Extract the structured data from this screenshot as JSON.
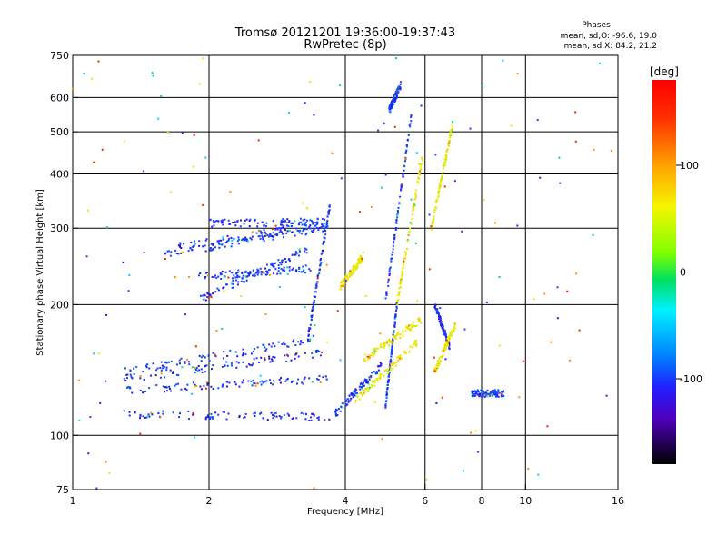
{
  "chart_data": {
    "type": "scatter",
    "title": "Tromsø 20121201 19:36:00-19:37:43",
    "subtitle": "RwPretec (8p)",
    "xlabel": "Frequency [MHz]",
    "ylabel": "Stationary phase Virtual Height [km]",
    "x_scale": "log",
    "y_scale": "log",
    "xlim": [
      1,
      16
    ],
    "ylim": [
      75,
      750
    ],
    "x_ticks": [
      1,
      2,
      4,
      6,
      8,
      10,
      16
    ],
    "x_tick_labels": [
      "1",
      "2",
      "4",
      "6",
      "8",
      "10",
      "16"
    ],
    "x_grid": [
      2,
      4,
      6,
      8,
      10
    ],
    "y_ticks": [
      75,
      100,
      200,
      300,
      400,
      500,
      600,
      750
    ],
    "y_tick_labels": [
      "75",
      "100",
      "200",
      "300",
      "400",
      "500",
      "600",
      "750"
    ],
    "y_grid": [
      100,
      200,
      300,
      400,
      500,
      600
    ],
    "grid": true,
    "legend_title": "Phases",
    "legend_lines": [
      "mean, sd,O:  -96.6, 19.0",
      "mean, sd,X:  84.2, 21.2"
    ],
    "colorbar": {
      "label": "[deg]",
      "range": [
        -180,
        180
      ],
      "ticks": [
        100,
        0,
        -100
      ],
      "tick_labels": [
        "100",
        "0",
        "-100"
      ]
    },
    "series": [
      {
        "name": "O",
        "color": "#1f3fff",
        "traces": [
          {
            "f": [
              1.3,
              3.7
            ],
            "h": [
              112,
              110
            ]
          },
          {
            "f": [
              1.3,
              3.7
            ],
            "h": [
              127,
              135
            ]
          },
          {
            "f": [
              1.3,
              3.6
            ],
            "h": [
              135,
              155
            ]
          },
          {
            "f": [
              1.3,
              3.6
            ],
            "h": [
              140,
              168
            ]
          },
          {
            "f": [
              1.6,
              3.7
            ],
            "h": [
              262,
              300
            ]
          },
          {
            "f": [
              1.7,
              3.5
            ],
            "h": [
              272,
              305
            ]
          },
          {
            "f": [
              1.9,
              3.3
            ],
            "h": [
              205,
              268
            ]
          },
          {
            "f": [
              2.0,
              3.6
            ],
            "h": [
              308,
              310
            ]
          },
          {
            "f": [
              1.9,
              3.4
            ],
            "h": [
              232,
              242
            ]
          },
          {
            "f": [
              3.3,
              3.7
            ],
            "h": [
              165,
              340
            ]
          },
          {
            "f": [
              3.8,
              4.8
            ],
            "h": [
              112,
              145
            ]
          },
          {
            "f": [
              4.9,
              5.6
            ],
            "h": [
              200,
              550
            ]
          },
          {
            "f": [
              5.0,
              5.3
            ],
            "h": [
              560,
              640
            ]
          },
          {
            "f": [
              4.9,
              5.2
            ],
            "h": [
              115,
              200
            ]
          },
          {
            "f": [
              6.3,
              6.8
            ],
            "h": [
              200,
              160
            ]
          },
          {
            "f": [
              7.6,
              9.0
            ],
            "h": [
              125,
              125
            ]
          }
        ]
      },
      {
        "name": "X",
        "color": "#e6e600",
        "traces": [
          {
            "f": [
              4.2,
              5.8
            ],
            "h": [
              120,
              165
            ]
          },
          {
            "f": [
              4.4,
              5.9
            ],
            "h": [
              150,
              185
            ]
          },
          {
            "f": [
              5.2,
              5.9
            ],
            "h": [
              200,
              430
            ]
          },
          {
            "f": [
              6.2,
              6.9
            ],
            "h": [
              300,
              520
            ]
          },
          {
            "f": [
              6.3,
              7.0
            ],
            "h": [
              140,
              180
            ]
          },
          {
            "f": [
              3.9,
              4.4
            ],
            "h": [
              220,
              260
            ]
          }
        ]
      }
    ]
  }
}
